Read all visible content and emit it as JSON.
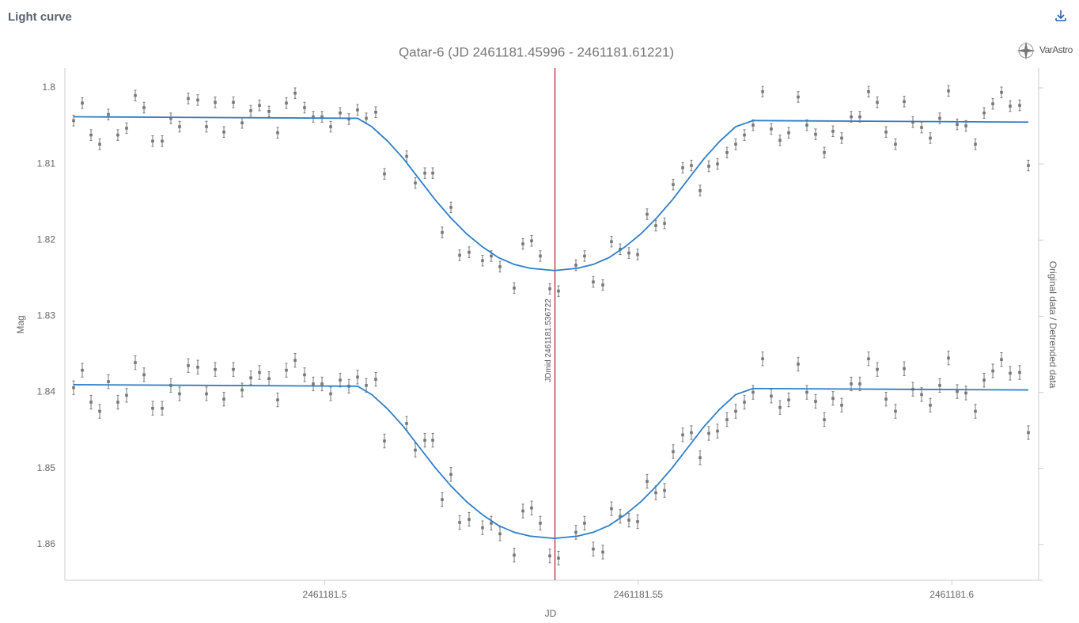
{
  "header": {
    "title": "Light curve",
    "logo": "VarAstro"
  },
  "chart_data": {
    "type": "scatter",
    "title": "Qatar-6 (JD 2461181.45996 - 2461181.61221)",
    "x_label": "JD",
    "y_label": "Mag",
    "y2_label": "Original data / Detrended data",
    "xlim": [
      2461181.45857,
      2461181.61385
    ],
    "ylim": [
      1.7974,
      1.8647
    ],
    "y_reversed": true,
    "xticks": [
      2461181.5,
      2461181.55,
      2461181.6
    ],
    "yticks": [
      1.8,
      1.81,
      1.82,
      1.83,
      1.84,
      1.85,
      1.86
    ],
    "x": [
      2461181.45996,
      2461181.46135,
      2461181.46274,
      2461181.46412,
      2461181.46551,
      2461181.46702,
      2461181.46841,
      2461181.4698,
      2461181.47119,
      2461181.47257,
      2461181.47409,
      2461181.47547,
      2461181.47686,
      2461181.47825,
      2461181.47976,
      2461181.48115,
      2461181.48254,
      2461181.48393,
      2461181.48544,
      2461181.48683,
      2461181.48822,
      2461181.4896,
      2461181.49112,
      2461181.4925,
      2461181.49389,
      2461181.49528,
      2461181.49679,
      2461181.49818,
      2461181.49957,
      2461181.50096,
      2461181.50247,
      2461181.50386,
      2461181.50524,
      2461181.50663,
      2461181.50814,
      2461181.50953,
      2461181.51307,
      2461181.51445,
      2461181.51597,
      2461181.51723,
      2461181.51874,
      2461181.52013,
      2461181.52152,
      2461181.52303,
      2461181.52517,
      2461181.52656,
      2461181.52795,
      2461181.53022,
      2461181.53161,
      2461181.53299,
      2461181.53438,
      2461181.5359,
      2461181.53728,
      2461181.54006,
      2461181.54144,
      2461181.54283,
      2461181.54435,
      2461181.54573,
      2461181.54712,
      2461181.54851,
      2461181.5499,
      2461181.55141,
      2461181.5528,
      2461181.55419,
      2461181.55557,
      2461181.55709,
      2461181.55847,
      2461181.55986,
      2461181.56125,
      2461181.56264,
      2461181.56415,
      2461181.56554,
      2461181.56693,
      2461181.56831,
      2461181.56983,
      2461181.57121,
      2461181.5726,
      2461181.57399,
      2461181.5755,
      2461181.57689,
      2461181.57828,
      2461181.57967,
      2461181.58105,
      2461181.58244,
      2461181.58396,
      2461181.58534,
      2461181.58673,
      2461181.58812,
      2461181.58951,
      2461181.59102,
      2461181.59241,
      2461181.59379,
      2461181.59518,
      2461181.59657,
      2461181.59808,
      2461181.59947,
      2461181.60086,
      2461181.60225,
      2461181.60376,
      2461181.60515,
      2461181.60654,
      2461181.60792,
      2461181.60931,
      2461181.61082,
      2461181.61221
    ],
    "series": [
      {
        "color": "#777777",
        "error": 0.0007,
        "values": [
          1.8043,
          1.802,
          1.8062,
          1.8074,
          1.8035,
          1.8062,
          1.8053,
          1.801,
          1.8026,
          1.807,
          1.807,
          1.804,
          1.8051,
          1.8014,
          1.8016,
          1.8051,
          1.8019,
          1.8058,
          1.8019,
          1.8046,
          1.803,
          1.8023,
          1.8031,
          1.8059,
          1.802,
          1.8007,
          1.8026,
          1.8038,
          1.8038,
          1.8051,
          1.8033,
          1.8041,
          1.8029,
          1.804,
          1.8032,
          1.8113,
          1.809,
          1.8125,
          1.8112,
          1.8112,
          1.819,
          1.8157,
          1.822,
          1.8216,
          1.8227,
          1.8221,
          1.8235,
          1.8263,
          1.8205,
          1.8201,
          1.8221,
          1.8264,
          1.8267,
          1.8233,
          1.8221,
          1.8255,
          1.8259,
          1.8202,
          1.8212,
          1.8217,
          1.8219,
          1.8166,
          1.8181,
          1.8178,
          1.8127,
          1.8105,
          1.8102,
          1.8135,
          1.8103,
          1.81,
          1.8085,
          1.8074,
          1.8062,
          1.8049,
          1.8005,
          1.8054,
          1.8069,
          1.8059,
          1.8012,
          1.8049,
          1.8061,
          1.8085,
          1.8057,
          1.8066,
          1.8038,
          1.8038,
          1.8005,
          1.8019,
          1.8058,
          1.8074,
          1.8018,
          1.8045,
          1.8052,
          1.8066,
          1.804,
          1.8004,
          1.8048,
          1.805,
          1.8074,
          1.8033,
          1.8021,
          1.8006,
          1.8024,
          1.8023,
          1.8102
        ]
      },
      {
        "color": "#777777",
        "error": 0.0009,
        "values": [
          1.8394,
          1.8371,
          1.8413,
          1.8425,
          1.8386,
          1.8413,
          1.8404,
          1.8361,
          1.8377,
          1.8421,
          1.8421,
          1.8391,
          1.8402,
          1.8365,
          1.8367,
          1.8402,
          1.837,
          1.8409,
          1.837,
          1.8397,
          1.8381,
          1.8374,
          1.8382,
          1.841,
          1.8371,
          1.8358,
          1.8377,
          1.8389,
          1.8389,
          1.8402,
          1.8384,
          1.8392,
          1.838,
          1.8391,
          1.8383,
          1.8464,
          1.8441,
          1.8476,
          1.8463,
          1.8463,
          1.8541,
          1.8508,
          1.8571,
          1.8567,
          1.8578,
          1.8572,
          1.8586,
          1.8614,
          1.8556,
          1.8552,
          1.8572,
          1.8615,
          1.8618,
          1.8584,
          1.8572,
          1.8606,
          1.861,
          1.8553,
          1.8563,
          1.8568,
          1.857,
          1.8517,
          1.8532,
          1.8529,
          1.8478,
          1.8456,
          1.8453,
          1.8486,
          1.8454,
          1.8451,
          1.8436,
          1.8425,
          1.8413,
          1.84,
          1.8356,
          1.8405,
          1.842,
          1.841,
          1.8363,
          1.84,
          1.8412,
          1.8436,
          1.8408,
          1.8417,
          1.8389,
          1.8389,
          1.8356,
          1.837,
          1.8409,
          1.8425,
          1.8369,
          1.8396,
          1.8403,
          1.8417,
          1.8391,
          1.8355,
          1.8399,
          1.8401,
          1.8425,
          1.8384,
          1.8372,
          1.8357,
          1.8375,
          1.8374,
          1.8453
        ]
      }
    ],
    "models": [
      {
        "color": "#2f7ec8",
        "x": [
          2461181.45996,
          2461181.50524,
          2461181.50751,
          2461181.51004,
          2461181.51256,
          2461181.51508,
          2461181.51761,
          2461181.52013,
          2461181.52265,
          2461181.52517,
          2461181.5277,
          2461181.53022,
          2461181.53274,
          2461181.53665,
          2461181.54031,
          2461181.54283,
          2461181.54536,
          2461181.54788,
          2461181.5504,
          2461181.55293,
          2461181.55545,
          2461181.55797,
          2461181.56049,
          2461181.56302,
          2461181.56554,
          2461181.56831,
          2461181.61221
        ],
        "values": [
          1.8038,
          1.804,
          1.8051,
          1.807,
          1.8093,
          1.812,
          1.8147,
          1.8171,
          1.8192,
          1.8209,
          1.8223,
          1.8232,
          1.8237,
          1.824,
          1.8237,
          1.8232,
          1.8223,
          1.8209,
          1.8192,
          1.8171,
          1.8147,
          1.812,
          1.8093,
          1.807,
          1.8051,
          1.8043,
          1.8045
        ]
      },
      {
        "color": "#2f7ec8",
        "x": [
          2461181.45996,
          2461181.50524,
          2461181.50751,
          2461181.51004,
          2461181.51256,
          2461181.51508,
          2461181.51761,
          2461181.52013,
          2461181.52265,
          2461181.52517,
          2461181.5277,
          2461181.53022,
          2461181.53274,
          2461181.53665,
          2461181.54031,
          2461181.54283,
          2461181.54536,
          2461181.54788,
          2461181.5504,
          2461181.55293,
          2461181.55545,
          2461181.55797,
          2461181.56049,
          2461181.56302,
          2461181.56554,
          2461181.56831,
          2461181.61221
        ],
        "values": [
          1.839,
          1.8392,
          1.8403,
          1.8422,
          1.8445,
          1.8472,
          1.8499,
          1.8523,
          1.8544,
          1.8561,
          1.8575,
          1.8584,
          1.8589,
          1.8592,
          1.8589,
          1.8584,
          1.8575,
          1.8561,
          1.8544,
          1.8523,
          1.8499,
          1.8472,
          1.8445,
          1.8422,
          1.8403,
          1.8395,
          1.8397
        ]
      }
    ],
    "jd_mid": 2461181.536722,
    "jd_mid_label": "JDmid 2461181.536722",
    "jd_mid_color": "#b01c2e"
  }
}
